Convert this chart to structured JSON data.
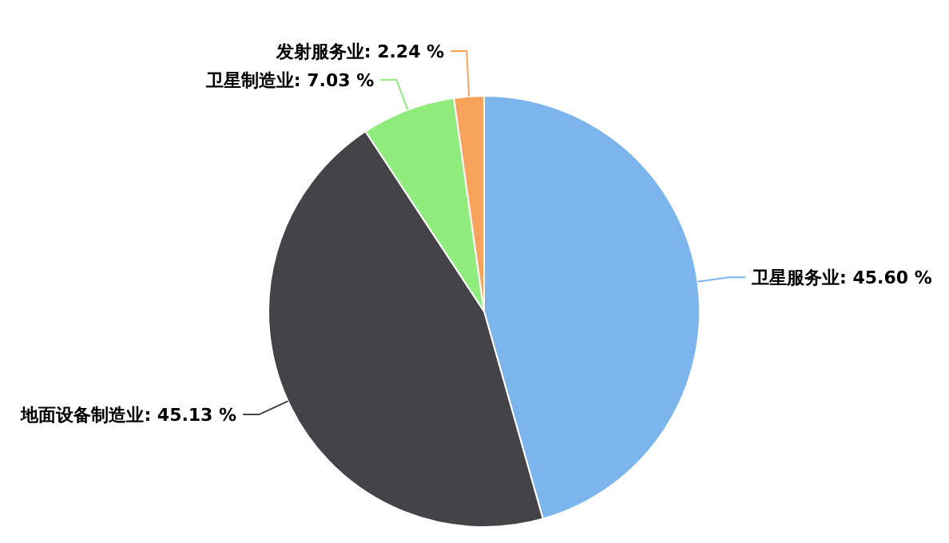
{
  "chart_data": {
    "type": "pie",
    "categories": [
      "卫星服务业",
      "地面设备制造业",
      "卫星制造业",
      "发射服务业"
    ],
    "values": [
      45.6,
      45.13,
      7.03,
      2.24
    ],
    "colors": [
      "#7cb5ec",
      "#434348",
      "#90ed7d",
      "#f7a35c"
    ],
    "value_labels": [
      "45.60 %",
      "45.13 %",
      "7.03 %",
      "2.24 %"
    ]
  }
}
